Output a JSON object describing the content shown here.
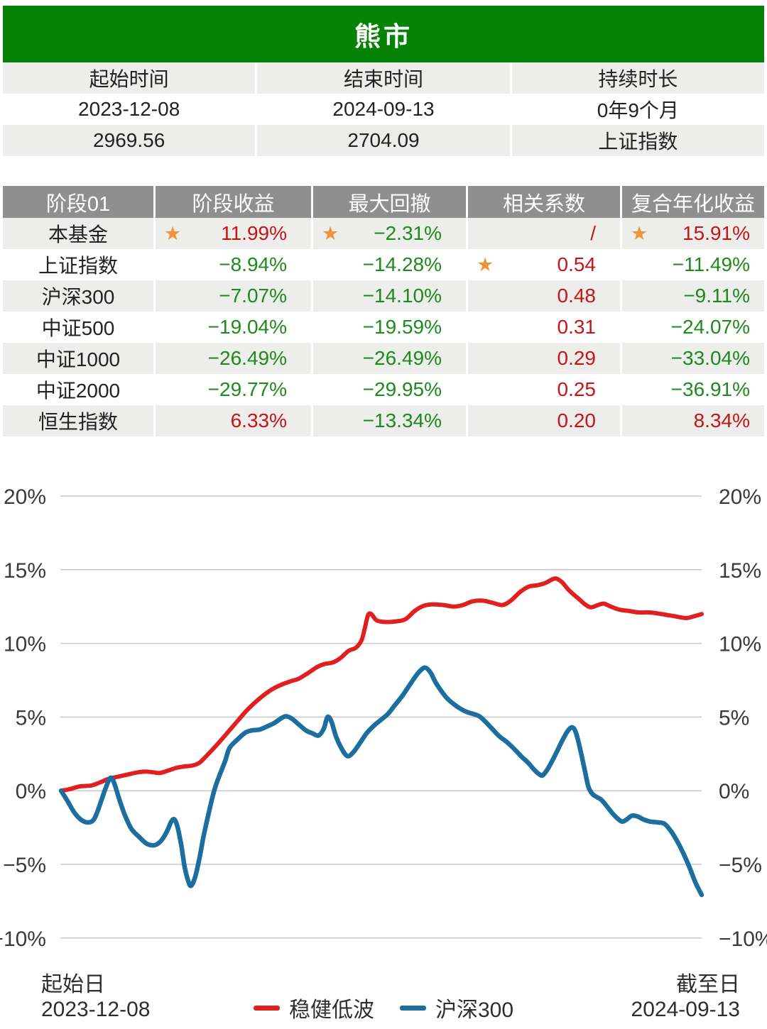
{
  "title": "熊市",
  "info": {
    "col_headers": [
      "起始时间",
      "结束时间",
      "持续时长"
    ],
    "row1": [
      "2023-12-08",
      "2024-09-13",
      "0年9个月"
    ],
    "row2": [
      "2969.56",
      "2704.09",
      "上证指数"
    ]
  },
  "stage_table": {
    "headers": [
      "阶段01",
      "阶段收益",
      "最大回撤",
      "相关系数",
      "复合年化收益"
    ],
    "rows": [
      {
        "name": "本基金",
        "cells": [
          {
            "v": "11.99%",
            "c": "red",
            "star": true
          },
          {
            "v": "−2.31%",
            "c": "green",
            "star": true
          },
          {
            "v": "/",
            "c": "red",
            "star": false
          },
          {
            "v": "15.91%",
            "c": "red",
            "star": true
          }
        ]
      },
      {
        "name": "上证指数",
        "cells": [
          {
            "v": "−8.94%",
            "c": "green",
            "star": false
          },
          {
            "v": "−14.28%",
            "c": "green",
            "star": false
          },
          {
            "v": "0.54",
            "c": "red",
            "star": true
          },
          {
            "v": "−11.49%",
            "c": "green",
            "star": false
          }
        ]
      },
      {
        "name": "沪深300",
        "cells": [
          {
            "v": "−7.07%",
            "c": "green",
            "star": false
          },
          {
            "v": "−14.10%",
            "c": "green",
            "star": false
          },
          {
            "v": "0.48",
            "c": "red",
            "star": false
          },
          {
            "v": "−9.11%",
            "c": "green",
            "star": false
          }
        ]
      },
      {
        "name": "中证500",
        "cells": [
          {
            "v": "−19.04%",
            "c": "green",
            "star": false
          },
          {
            "v": "−19.59%",
            "c": "green",
            "star": false
          },
          {
            "v": "0.31",
            "c": "red",
            "star": false
          },
          {
            "v": "−24.07%",
            "c": "green",
            "star": false
          }
        ]
      },
      {
        "name": "中证1000",
        "cells": [
          {
            "v": "−26.49%",
            "c": "green",
            "star": false
          },
          {
            "v": "−26.49%",
            "c": "green",
            "star": false
          },
          {
            "v": "0.29",
            "c": "red",
            "star": false
          },
          {
            "v": "−33.04%",
            "c": "green",
            "star": false
          }
        ]
      },
      {
        "name": "中证2000",
        "cells": [
          {
            "v": "−29.77%",
            "c": "green",
            "star": false
          },
          {
            "v": "−29.95%",
            "c": "green",
            "star": false
          },
          {
            "v": "0.25",
            "c": "red",
            "star": false
          },
          {
            "v": "−36.91%",
            "c": "green",
            "star": false
          }
        ]
      },
      {
        "name": "恒生指数",
        "cells": [
          {
            "v": "6.33%",
            "c": "red",
            "star": false
          },
          {
            "v": "−13.34%",
            "c": "green",
            "star": false
          },
          {
            "v": "0.20",
            "c": "red",
            "star": false
          },
          {
            "v": "8.34%",
            "c": "red",
            "star": false
          }
        ]
      }
    ]
  },
  "chart_data": {
    "type": "line",
    "title": "",
    "xlabel": "",
    "ylabel": "",
    "ylim": [
      -10,
      20
    ],
    "grid": true,
    "legend_position": "bottom-center",
    "y_ticks": [
      20,
      15,
      10,
      5,
      0,
      -5,
      -10
    ],
    "y_tick_labels": [
      "20%",
      "15%",
      "10%",
      "5%",
      "0%",
      "−5%",
      "−10%"
    ],
    "x_axis": {
      "start_label": "起始日",
      "start_date": "2023-12-08",
      "end_label": "截至日",
      "end_date": "2024-09-13"
    },
    "series": [
      {
        "name": "稳健低波",
        "color": "#e02020",
        "points": [
          [
            0.0,
            0.0
          ],
          [
            0.013,
            0.1
          ],
          [
            0.03,
            0.3
          ],
          [
            0.047,
            0.35
          ],
          [
            0.06,
            0.55
          ],
          [
            0.074,
            0.8
          ],
          [
            0.089,
            0.95
          ],
          [
            0.104,
            1.1
          ],
          [
            0.12,
            1.25
          ],
          [
            0.132,
            1.3
          ],
          [
            0.144,
            1.25
          ],
          [
            0.154,
            1.2
          ],
          [
            0.166,
            1.35
          ],
          [
            0.18,
            1.55
          ],
          [
            0.193,
            1.65
          ],
          [
            0.204,
            1.7
          ],
          [
            0.216,
            1.9
          ],
          [
            0.23,
            2.5
          ],
          [
            0.247,
            3.3
          ],
          [
            0.269,
            4.4
          ],
          [
            0.291,
            5.5
          ],
          [
            0.311,
            6.3
          ],
          [
            0.33,
            6.9
          ],
          [
            0.347,
            7.25
          ],
          [
            0.36,
            7.45
          ],
          [
            0.371,
            7.6
          ],
          [
            0.386,
            8.0
          ],
          [
            0.4,
            8.4
          ],
          [
            0.411,
            8.6
          ],
          [
            0.424,
            8.7
          ],
          [
            0.436,
            9.0
          ],
          [
            0.449,
            9.5
          ],
          [
            0.46,
            9.7
          ],
          [
            0.469,
            10.2
          ],
          [
            0.474,
            11.0
          ],
          [
            0.479,
            11.9
          ],
          [
            0.484,
            12.0
          ],
          [
            0.493,
            11.55
          ],
          [
            0.508,
            11.45
          ],
          [
            0.524,
            11.5
          ],
          [
            0.538,
            11.65
          ],
          [
            0.552,
            12.2
          ],
          [
            0.566,
            12.55
          ],
          [
            0.58,
            12.65
          ],
          [
            0.597,
            12.6
          ],
          [
            0.613,
            12.5
          ],
          [
            0.627,
            12.6
          ],
          [
            0.642,
            12.85
          ],
          [
            0.658,
            12.9
          ],
          [
            0.674,
            12.75
          ],
          [
            0.689,
            12.6
          ],
          [
            0.702,
            12.9
          ],
          [
            0.717,
            13.5
          ],
          [
            0.73,
            13.85
          ],
          [
            0.744,
            13.95
          ],
          [
            0.756,
            14.1
          ],
          [
            0.767,
            14.35
          ],
          [
            0.773,
            14.4
          ],
          [
            0.782,
            14.15
          ],
          [
            0.793,
            13.6
          ],
          [
            0.806,
            13.1
          ],
          [
            0.818,
            12.65
          ],
          [
            0.827,
            12.45
          ],
          [
            0.838,
            12.6
          ],
          [
            0.847,
            12.7
          ],
          [
            0.858,
            12.5
          ],
          [
            0.871,
            12.3
          ],
          [
            0.886,
            12.2
          ],
          [
            0.902,
            12.1
          ],
          [
            0.919,
            12.1
          ],
          [
            0.936,
            12.0
          ],
          [
            0.95,
            11.9
          ],
          [
            0.963,
            11.8
          ],
          [
            0.977,
            11.72
          ],
          [
            0.989,
            11.85
          ],
          [
            1.0,
            11.99
          ]
        ]
      },
      {
        "name": "沪深300",
        "color": "#1c6e9e",
        "points": [
          [
            0.0,
            0.0
          ],
          [
            0.01,
            -0.7
          ],
          [
            0.021,
            -1.5
          ],
          [
            0.032,
            -2.0
          ],
          [
            0.043,
            -2.15
          ],
          [
            0.052,
            -1.9
          ],
          [
            0.061,
            -0.9
          ],
          [
            0.069,
            0.1
          ],
          [
            0.077,
            0.87
          ],
          [
            0.083,
            0.5
          ],
          [
            0.091,
            -0.6
          ],
          [
            0.1,
            -1.7
          ],
          [
            0.11,
            -2.6
          ],
          [
            0.121,
            -3.1
          ],
          [
            0.132,
            -3.55
          ],
          [
            0.141,
            -3.7
          ],
          [
            0.149,
            -3.65
          ],
          [
            0.158,
            -3.3
          ],
          [
            0.166,
            -2.7
          ],
          [
            0.172,
            -2.1
          ],
          [
            0.177,
            -1.95
          ],
          [
            0.182,
            -2.5
          ],
          [
            0.188,
            -3.8
          ],
          [
            0.193,
            -5.2
          ],
          [
            0.199,
            -6.2
          ],
          [
            0.203,
            -6.45
          ],
          [
            0.209,
            -5.9
          ],
          [
            0.216,
            -4.6
          ],
          [
            0.222,
            -3.2
          ],
          [
            0.23,
            -1.6
          ],
          [
            0.239,
            0.0
          ],
          [
            0.247,
            1.0
          ],
          [
            0.256,
            2.0
          ],
          [
            0.263,
            2.9
          ],
          [
            0.276,
            3.5
          ],
          [
            0.288,
            3.95
          ],
          [
            0.299,
            4.1
          ],
          [
            0.31,
            4.15
          ],
          [
            0.321,
            4.35
          ],
          [
            0.333,
            4.6
          ],
          [
            0.343,
            4.9
          ],
          [
            0.351,
            5.05
          ],
          [
            0.36,
            4.9
          ],
          [
            0.371,
            4.5
          ],
          [
            0.382,
            4.1
          ],
          [
            0.392,
            3.9
          ],
          [
            0.402,
            3.75
          ],
          [
            0.41,
            4.2
          ],
          [
            0.416,
            5.0
          ],
          [
            0.422,
            4.7
          ],
          [
            0.429,
            3.7
          ],
          [
            0.438,
            2.85
          ],
          [
            0.447,
            2.35
          ],
          [
            0.456,
            2.6
          ],
          [
            0.466,
            3.2
          ],
          [
            0.477,
            3.9
          ],
          [
            0.488,
            4.4
          ],
          [
            0.499,
            4.8
          ],
          [
            0.51,
            5.2
          ],
          [
            0.521,
            5.8
          ],
          [
            0.532,
            6.4
          ],
          [
            0.543,
            7.1
          ],
          [
            0.554,
            7.8
          ],
          [
            0.562,
            8.2
          ],
          [
            0.569,
            8.35
          ],
          [
            0.577,
            8.0
          ],
          [
            0.584,
            7.4
          ],
          [
            0.593,
            6.8
          ],
          [
            0.602,
            6.3
          ],
          [
            0.611,
            5.95
          ],
          [
            0.622,
            5.6
          ],
          [
            0.633,
            5.35
          ],
          [
            0.644,
            5.2
          ],
          [
            0.653,
            5.05
          ],
          [
            0.662,
            4.7
          ],
          [
            0.673,
            4.2
          ],
          [
            0.684,
            3.7
          ],
          [
            0.696,
            3.3
          ],
          [
            0.707,
            2.85
          ],
          [
            0.718,
            2.35
          ],
          [
            0.729,
            1.9
          ],
          [
            0.739,
            1.4
          ],
          [
            0.747,
            1.1
          ],
          [
            0.752,
            1.05
          ],
          [
            0.76,
            1.5
          ],
          [
            0.77,
            2.3
          ],
          [
            0.78,
            3.2
          ],
          [
            0.79,
            4.0
          ],
          [
            0.798,
            4.3
          ],
          [
            0.804,
            3.9
          ],
          [
            0.811,
            2.7
          ],
          [
            0.818,
            1.3
          ],
          [
            0.823,
            0.3
          ],
          [
            0.829,
            -0.2
          ],
          [
            0.837,
            -0.45
          ],
          [
            0.843,
            -0.6
          ],
          [
            0.851,
            -1.0
          ],
          [
            0.86,
            -1.5
          ],
          [
            0.869,
            -1.9
          ],
          [
            0.876,
            -2.1
          ],
          [
            0.883,
            -1.95
          ],
          [
            0.891,
            -1.7
          ],
          [
            0.9,
            -1.75
          ],
          [
            0.909,
            -1.95
          ],
          [
            0.92,
            -2.1
          ],
          [
            0.931,
            -2.15
          ],
          [
            0.942,
            -2.25
          ],
          [
            0.953,
            -2.8
          ],
          [
            0.964,
            -3.6
          ],
          [
            0.973,
            -4.4
          ],
          [
            0.981,
            -5.2
          ],
          [
            0.99,
            -6.2
          ],
          [
            1.0,
            -7.07
          ]
        ]
      }
    ]
  },
  "colors": {
    "header_green": "#068306",
    "table_header_gray": "#8f8f8f",
    "row_gray": "#ededeb",
    "gain_red": "#c41616",
    "loss_green": "#1e8a1e",
    "star_orange": "#f0923c",
    "fund_line_red": "#e02020",
    "benchmark_line_blue": "#1c6e9e",
    "gridline_gray": "#c8c8c8"
  }
}
